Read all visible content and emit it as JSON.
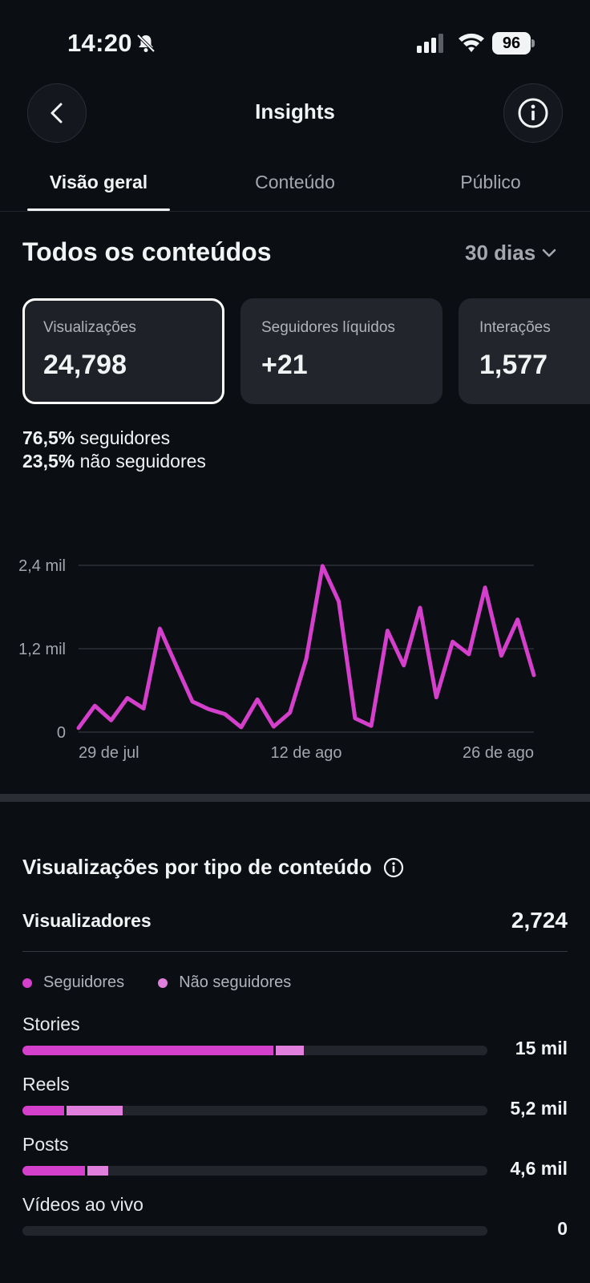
{
  "status_bar": {
    "time": "14:20",
    "battery": "96"
  },
  "header": {
    "title": "Insights"
  },
  "tabs": [
    {
      "label": "Visão geral",
      "active": true
    },
    {
      "label": "Conteúdo",
      "active": false
    },
    {
      "label": "Público",
      "active": false
    }
  ],
  "section": {
    "title": "Todos os conteúdos",
    "range": "30 dias"
  },
  "metrics": [
    {
      "label": "Visualizações",
      "value": "24,798",
      "selected": true
    },
    {
      "label": "Seguidores líquidos",
      "value": "+21",
      "selected": false
    },
    {
      "label": "Interações",
      "value": "1,577",
      "selected": false
    }
  ],
  "breakdown": {
    "followers_pct": "76,5%",
    "followers_label": "seguidores",
    "nonfollowers_pct": "23,5%",
    "nonfollowers_label": "não seguidores"
  },
  "chart_data": {
    "type": "line",
    "x_tick_labels": [
      "29 de jul",
      "12 de ago",
      "26 de ago"
    ],
    "y_tick_labels": [
      "2,4 mil",
      "1,2 mil",
      "0"
    ],
    "ylim": [
      0,
      2400
    ],
    "grid": true,
    "color": "#d43fcb",
    "series": [
      {
        "values": [
          60,
          380,
          170,
          490,
          340,
          1490,
          960,
          440,
          330,
          260,
          70,
          470,
          80,
          280,
          1050,
          2390,
          1880,
          200,
          90,
          1460,
          960,
          1790,
          500,
          1300,
          1120,
          2080,
          1100,
          1620,
          820
        ]
      }
    ]
  },
  "views_by_type": {
    "title": "Visualizações por tipo de conteúdo",
    "viewers_label": "Visualizadores",
    "viewers_value": "2,724",
    "legend": {
      "followers": "Seguidores",
      "nonfollowers": "Não seguidores"
    },
    "colors": {
      "followers": "#d43fcb",
      "nonfollowers": "#e17fdc"
    },
    "rows": [
      {
        "label": "Stories",
        "value": "15 mil",
        "followers_fraction": 0.54,
        "nonfollowers_fraction": 0.065
      },
      {
        "label": "Reels",
        "value": "5,2 mil",
        "followers_fraction": 0.09,
        "nonfollowers_fraction": 0.125
      },
      {
        "label": "Posts",
        "value": "4,6 mil",
        "followers_fraction": 0.135,
        "nonfollowers_fraction": 0.05
      },
      {
        "label": "Vídeos ao vivo",
        "value": "0",
        "followers_fraction": 0,
        "nonfollowers_fraction": 0
      }
    ]
  }
}
